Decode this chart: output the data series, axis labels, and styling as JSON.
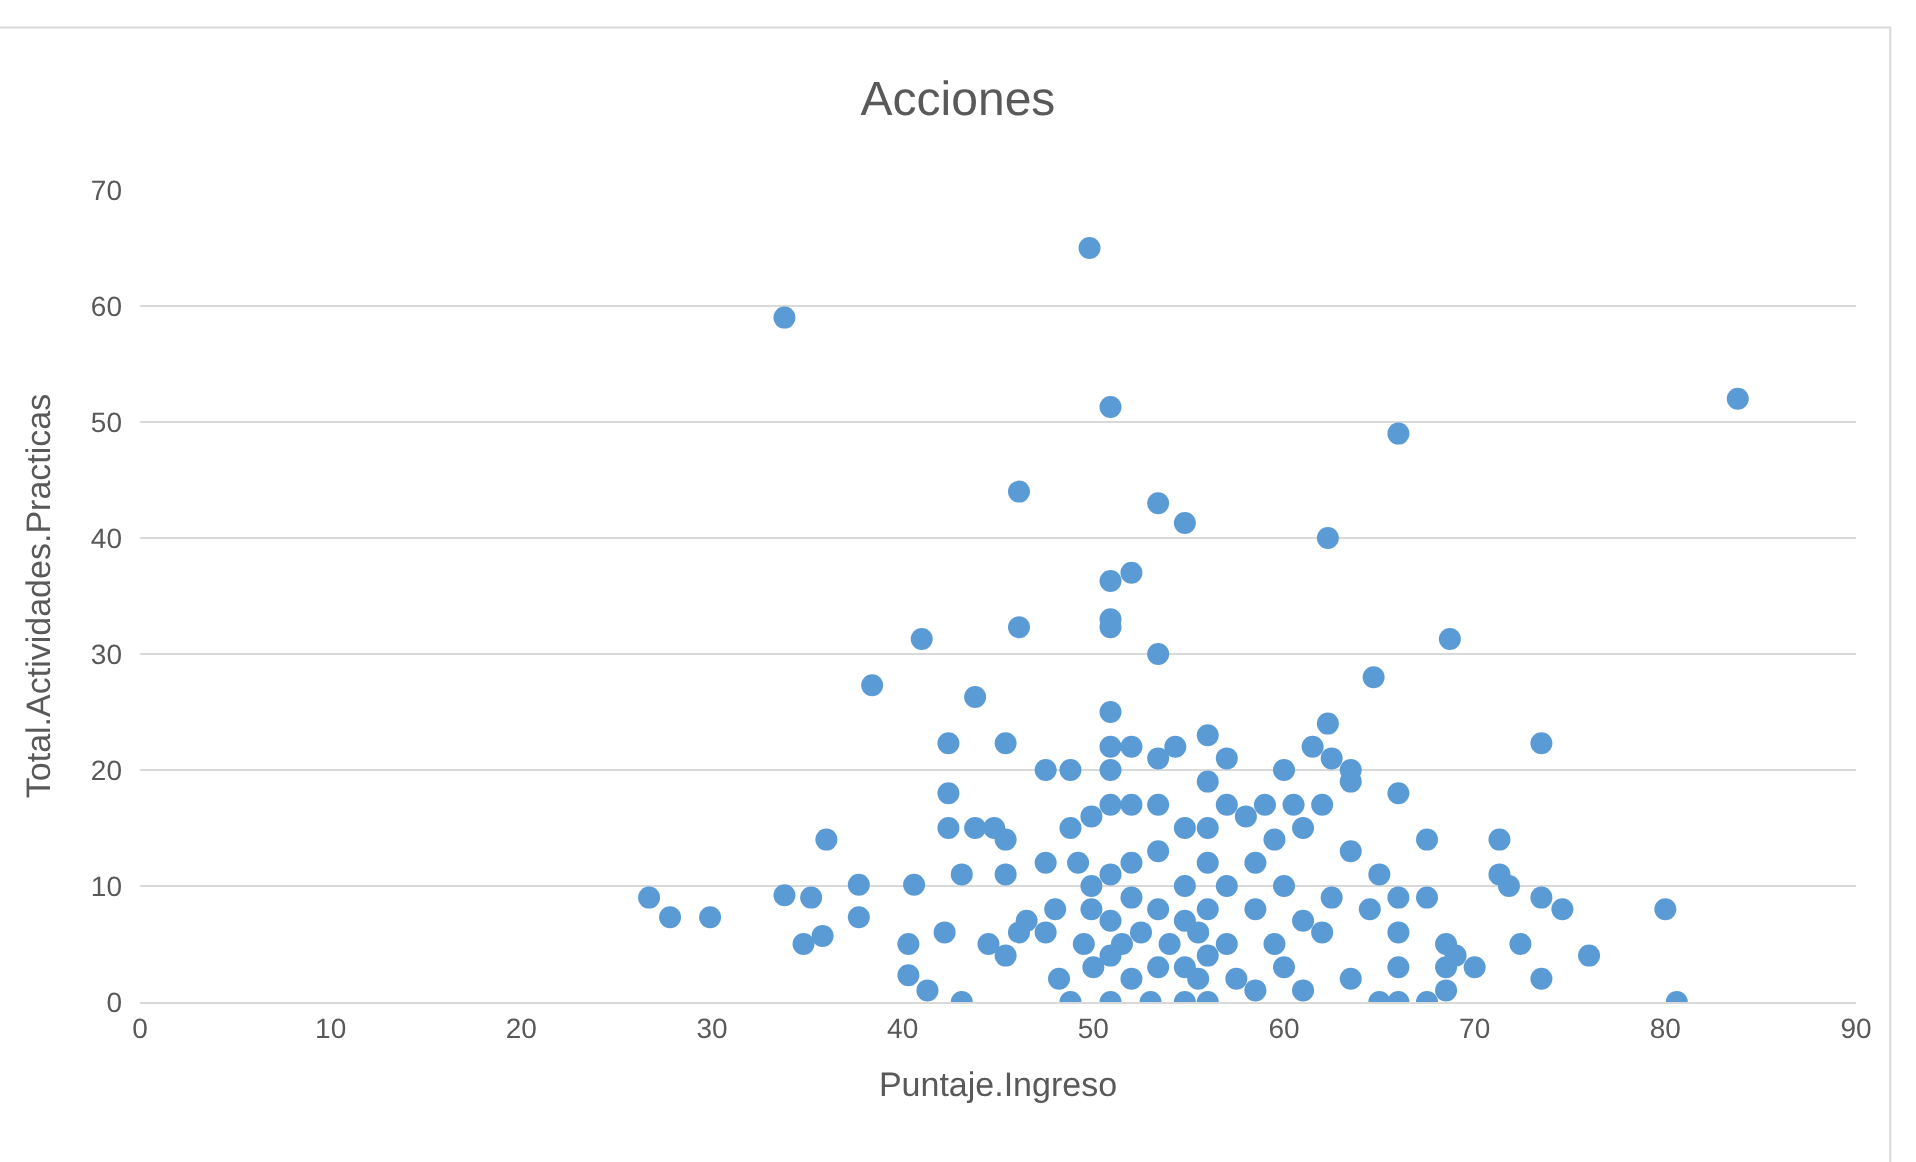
{
  "chart_data": {
    "type": "scatter",
    "title": "Acciones",
    "xlabel": "Puntaje.Ingreso",
    "ylabel": "Total.Actividades.Practicas",
    "x": [
      33.8,
      49.8,
      83.8,
      50.9,
      66,
      46.1,
      53.4,
      54.8,
      62.3,
      50.9,
      52,
      50.9,
      50.9,
      46.1,
      41,
      68.7,
      53.4,
      38.4,
      43.8,
      64.7,
      50.9,
      62.3,
      73.5,
      45.4,
      42.4,
      26.7,
      27.8,
      29.9,
      33.8,
      35.2,
      34.8,
      35.8,
      36,
      37.7,
      37.7,
      40.6,
      40.3,
      40.3,
      41.3,
      42.2,
      42.4,
      42.4,
      43.1,
      43.1,
      43.8,
      44.5,
      44.8,
      45.4,
      45.4,
      45.4,
      46.1,
      46.5,
      47.5,
      47.5,
      47.5,
      48,
      48.2,
      48.8,
      48.8,
      48.8,
      49.2,
      49.5,
      49.9,
      49.9,
      49.9,
      50,
      50.9,
      50.9,
      50.9,
      50.9,
      50.9,
      50.9,
      50.9,
      51.5,
      52,
      52,
      52,
      52,
      52,
      52.5,
      53,
      53.4,
      53.4,
      53.4,
      53.4,
      53.4,
      54,
      54.3,
      54.8,
      54.8,
      54.8,
      54.8,
      54.8,
      55.5,
      55.5,
      56,
      56,
      56,
      56,
      56,
      56,
      56,
      57,
      57,
      57,
      57,
      57.5,
      58,
      58.5,
      58.5,
      58.5,
      59,
      59.5,
      59.5,
      60,
      60,
      60,
      60.5,
      61,
      61,
      61,
      61.5,
      62,
      62,
      62.5,
      62.5,
      63.5,
      63.5,
      63.5,
      63.5,
      64.5,
      65,
      65,
      66,
      66,
      66,
      66,
      66,
      67.5,
      67.5,
      67.5,
      68.5,
      68.5,
      68.5,
      69,
      70,
      71.3,
      71.3,
      71.8,
      72.4,
      73.5,
      73.5,
      74.6,
      76,
      80,
      80.6
    ],
    "series": [
      {
        "color": "#5b9bd5",
        "values": [
          59,
          65,
          52,
          51.3,
          49,
          44,
          43,
          41.3,
          40,
          36.3,
          37,
          33,
          32.3,
          32.3,
          31.3,
          31.3,
          30,
          27.3,
          26.3,
          28,
          25,
          24,
          22.3,
          22.3,
          22.3,
          9,
          7.3,
          7.3,
          9.2,
          9,
          5,
          5.7,
          14,
          10.1,
          7.3,
          10.1,
          5,
          2.3,
          1,
          6,
          15,
          18,
          11,
          0,
          15,
          5,
          15,
          11,
          14,
          4,
          6,
          7,
          12,
          20,
          6,
          8,
          2,
          20,
          15,
          0,
          12,
          5,
          16,
          10,
          8,
          3,
          22,
          20,
          17,
          11,
          7,
          4,
          0,
          5,
          22,
          17,
          12,
          9,
          2,
          6,
          0,
          21,
          17,
          13,
          8,
          3,
          5,
          22,
          15,
          10,
          7,
          3,
          0,
          6,
          2,
          23,
          19,
          15,
          12,
          8,
          4,
          0,
          21,
          17,
          10,
          5,
          2,
          16,
          12,
          8,
          1,
          17,
          14,
          5,
          20,
          10,
          3,
          17,
          15,
          7,
          1,
          22,
          17,
          6,
          21,
          9,
          19,
          13,
          2,
          20,
          8,
          11,
          0,
          18,
          9,
          6,
          3,
          0,
          14,
          9,
          0,
          5,
          3,
          1,
          4,
          3,
          14,
          11,
          10,
          5,
          9,
          2,
          8,
          4,
          8,
          0
        ]
      }
    ],
    "xlim": [
      0,
      90
    ],
    "xticks": [
      0,
      10,
      20,
      30,
      40,
      50,
      60,
      70,
      80,
      90
    ],
    "ylim": [
      0,
      70
    ],
    "yticks": [
      0,
      10,
      20,
      30,
      40,
      50,
      60,
      70
    ],
    "grid": "y",
    "marker": "circle"
  }
}
